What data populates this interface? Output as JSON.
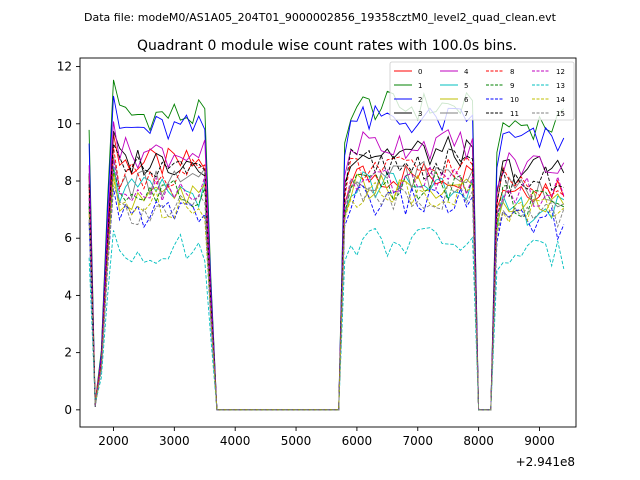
{
  "chart_data": {
    "type": "line",
    "suptitle": "Data file: modeM0/AS1A05_204T01_9000002856_19358cztM0_level2_quad_clean.evt",
    "title": "Quadrant 0 module wise count rates with 100.0s bins.",
    "xlabel": "",
    "ylabel": "",
    "offset_text": "+2.941e8",
    "xlim": [
      1450,
      9600
    ],
    "ylim": [
      -0.6,
      12.3
    ],
    "xticks": [
      2000,
      3000,
      4000,
      5000,
      6000,
      7000,
      8000,
      9000
    ],
    "yticks": [
      0,
      2,
      4,
      6,
      8,
      10,
      12
    ],
    "legend_position": "top-right",
    "x": [
      1600,
      1700,
      1800,
      1900,
      2000,
      2100,
      2200,
      2300,
      2400,
      2500,
      2600,
      2700,
      2800,
      2900,
      3000,
      3100,
      3200,
      3300,
      3400,
      3500,
      3600,
      3700,
      3800,
      3900,
      4000,
      4100,
      4200,
      4300,
      4400,
      4500,
      4600,
      4700,
      4800,
      4900,
      5000,
      5100,
      5200,
      5300,
      5400,
      5500,
      5600,
      5700,
      5800,
      5900,
      6000,
      6100,
      6200,
      6300,
      6400,
      6500,
      6600,
      6700,
      6800,
      6900,
      7000,
      7100,
      7200,
      7300,
      7400,
      7500,
      7600,
      7700,
      7800,
      7900,
      8000,
      8100,
      8200,
      8300,
      8400,
      8500,
      8600,
      8700,
      8800,
      8900,
      9000,
      9100,
      9200,
      9300,
      9400
    ],
    "series_base": [
      {
        "name": "0",
        "color": "#ff0000",
        "dash": "solid",
        "level_a": 8.6,
        "level_b": 8.2,
        "level_c": 7.8
      },
      {
        "name": "1",
        "color": "#008000",
        "dash": "solid",
        "level_a": 10.3,
        "level_b": 10.6,
        "level_c": 10.0
      },
      {
        "name": "2",
        "color": "#0000ff",
        "dash": "solid",
        "level_a": 9.8,
        "level_b": 10.1,
        "level_c": 9.4
      },
      {
        "name": "3",
        "color": "#000000",
        "dash": "solid",
        "level_a": 8.7,
        "level_b": 9.0,
        "level_c": 8.4
      },
      {
        "name": "4",
        "color": "#bf00bf",
        "dash": "solid",
        "level_a": 9.0,
        "level_b": 9.3,
        "level_c": 8.6
      },
      {
        "name": "5",
        "color": "#00bfbf",
        "dash": "solid",
        "level_a": 7.6,
        "level_b": 7.9,
        "level_c": 7.0
      },
      {
        "name": "6",
        "color": "#bfbf00",
        "dash": "solid",
        "level_a": 7.4,
        "level_b": 7.7,
        "level_c": 7.2
      },
      {
        "name": "7",
        "color": "#808080",
        "dash": "solid",
        "level_a": 7.9,
        "level_b": 8.2,
        "level_c": 7.6
      },
      {
        "name": "8",
        "color": "#ff0000",
        "dash": "dashed",
        "level_a": 8.2,
        "level_b": 8.4,
        "level_c": 8.0
      },
      {
        "name": "9",
        "color": "#008000",
        "dash": "dashed",
        "level_a": 7.5,
        "level_b": 7.8,
        "level_c": 7.3
      },
      {
        "name": "10",
        "color": "#0000ff",
        "dash": "dashed",
        "level_a": 6.9,
        "level_b": 7.3,
        "level_c": 6.5
      },
      {
        "name": "11",
        "color": "#000000",
        "dash": "dashed",
        "level_a": 8.3,
        "level_b": 8.6,
        "level_c": 8.0
      },
      {
        "name": "12",
        "color": "#bf00bf",
        "dash": "dashed",
        "level_a": 7.8,
        "level_b": 8.0,
        "level_c": 7.6
      },
      {
        "name": "13",
        "color": "#00bfbf",
        "dash": "dashed",
        "level_a": 5.6,
        "level_b": 5.9,
        "level_c": 5.4
      },
      {
        "name": "14",
        "color": "#bfbf00",
        "dash": "dashed",
        "level_a": 7.2,
        "level_b": 7.6,
        "level_c": 7.0
      },
      {
        "name": "15",
        "color": "#808080",
        "dash": "dashed",
        "level_a": 7.0,
        "level_b": 7.5,
        "level_c": 6.8
      }
    ],
    "gaps": [
      {
        "description": "data gap",
        "from": 3700,
        "to": 5700,
        "value": 0
      },
      {
        "description": "data gap",
        "from": 8000,
        "to": 8200,
        "value": 0
      }
    ]
  }
}
